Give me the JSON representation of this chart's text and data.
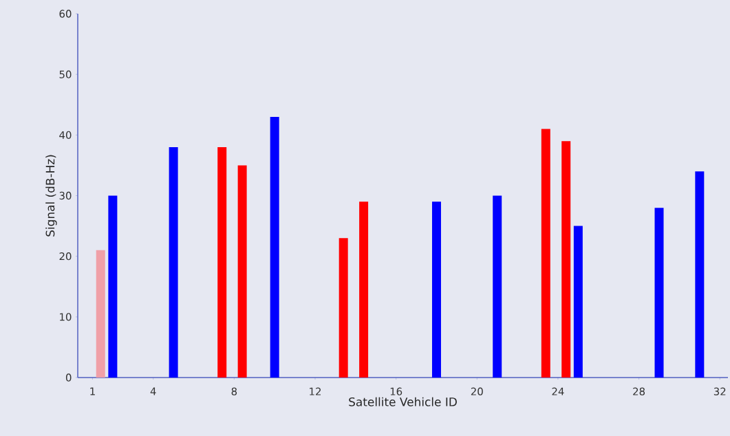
{
  "chart_data": {
    "type": "bar",
    "xlabel": "Satellite Vehicle ID",
    "ylabel": "Signal (dB-Hz)",
    "xlim": [
      0.27,
      32.4
    ],
    "xticks": [
      1,
      4,
      8,
      12,
      16,
      20,
      24,
      28,
      32
    ],
    "ylim": [
      0,
      60
    ],
    "yticks": [
      0,
      10,
      20,
      30,
      40,
      50,
      60
    ],
    "series": [
      {
        "color": "#f0a0a8",
        "x": [
          1.4
        ],
        "values": [
          21
        ]
      },
      {
        "color": "#0000ff",
        "x": [
          2,
          5,
          10,
          18,
          21,
          25,
          29,
          31
        ],
        "values": [
          30,
          38,
          43,
          29,
          30,
          25,
          28,
          34
        ]
      },
      {
        "color": "#ff0000",
        "x": [
          7.4,
          8.4,
          13.4,
          14.4,
          23.4,
          24.4
        ],
        "values": [
          38,
          35,
          23,
          29,
          41,
          39
        ]
      }
    ]
  }
}
